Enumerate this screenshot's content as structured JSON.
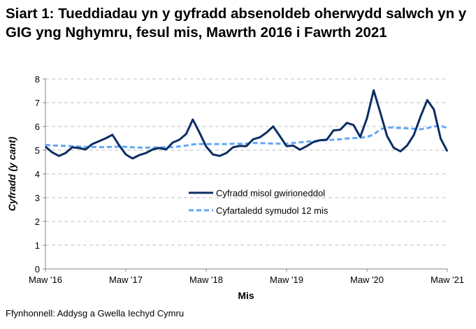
{
  "title": "Siart 1: Tueddiadau yn y gyfradd absenoldeb oherwydd salwch yn y GIG yng Nghymru, fesul mis, Mawrth 2016 i Fawrth 2021",
  "source": "Ffynhonnell: Addysg a Gwella Iechyd Cymru",
  "chart_data": {
    "type": "line",
    "title": "Siart 1: Tueddiadau yn y gyfradd absenoldeb oherwydd salwch yn y GIG yng Nghymru, fesul mis, Mawrth 2016 i Fawrth 2021",
    "xlabel": "Mis",
    "ylabel": "Cyfradd (y cant)",
    "ylim": [
      0,
      8
    ],
    "yticks": [
      "0",
      "1",
      "2",
      "3",
      "4",
      "5",
      "6",
      "7",
      "8"
    ],
    "xtick_labels": [
      "Maw '16",
      "Maw '17",
      "Maw '18",
      "Maw '19",
      "Maw '20",
      "Maw '21"
    ],
    "x_range": [
      "2016-03",
      "2021-03"
    ],
    "grid": "horizontal dashed",
    "legend_position": "center",
    "series": [
      {
        "name": "Cyfradd misol gwirioneddol",
        "color": "#0b2d63",
        "style": "solid",
        "values": [
          5.15,
          4.91,
          4.76,
          4.88,
          5.12,
          5.09,
          5.03,
          5.26,
          5.38,
          5.5,
          5.65,
          5.21,
          4.82,
          4.65,
          4.79,
          4.88,
          5.03,
          5.09,
          5.03,
          5.32,
          5.44,
          5.68,
          6.29,
          5.74,
          5.15,
          4.82,
          4.76,
          4.88,
          5.12,
          5.18,
          5.17,
          5.46,
          5.54,
          5.74,
          6.0,
          5.59,
          5.17,
          5.19,
          5.02,
          5.17,
          5.34,
          5.42,
          5.44,
          5.83,
          5.86,
          6.15,
          6.06,
          5.56,
          6.34,
          7.52,
          6.57,
          5.59,
          5.1,
          4.95,
          5.2,
          5.64,
          6.42,
          7.11,
          6.71,
          5.49,
          4.95
        ]
      },
      {
        "name": "Cyfartaledd symudol 12 mis",
        "color": "#63a7f5",
        "style": "dashed",
        "values": [
          5.22,
          5.2,
          5.19,
          5.18,
          5.17,
          5.15,
          5.14,
          5.13,
          5.13,
          5.13,
          5.14,
          5.15,
          5.14,
          5.12,
          5.11,
          5.11,
          5.11,
          5.12,
          5.12,
          5.13,
          5.16,
          5.19,
          5.24,
          5.26,
          5.26,
          5.26,
          5.26,
          5.26,
          5.27,
          5.27,
          5.28,
          5.3,
          5.3,
          5.29,
          5.28,
          5.27,
          5.27,
          5.3,
          5.33,
          5.36,
          5.38,
          5.41,
          5.42,
          5.44,
          5.46,
          5.49,
          5.51,
          5.52,
          5.56,
          5.66,
          5.88,
          5.96,
          5.95,
          5.93,
          5.92,
          5.9,
          5.88,
          5.93,
          6.0,
          6.03,
          5.93
        ]
      }
    ]
  }
}
